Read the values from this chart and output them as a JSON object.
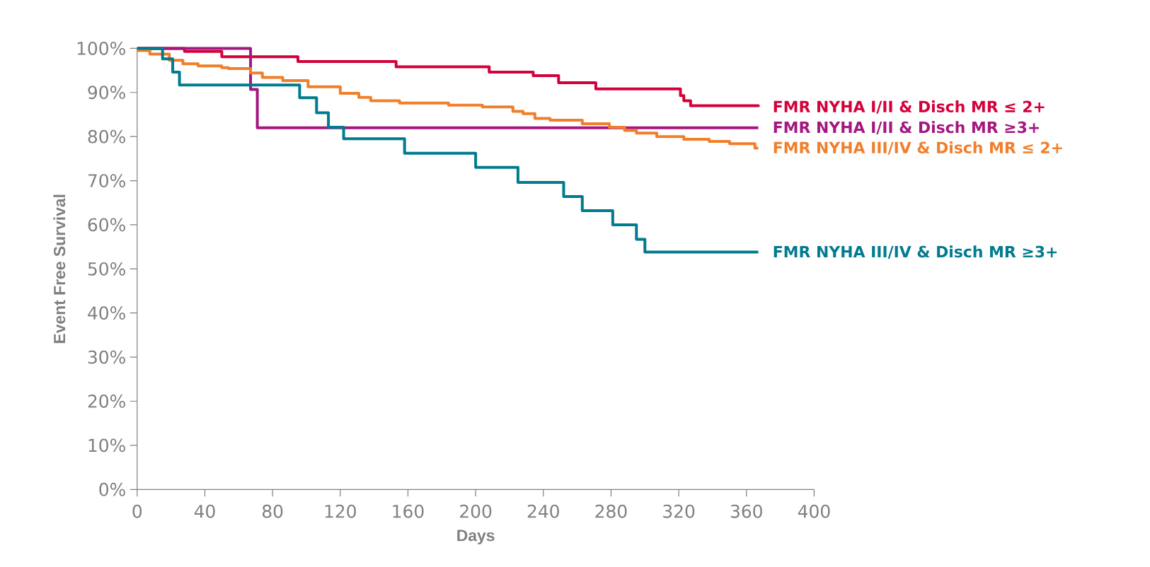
{
  "chart_data": {
    "type": "step",
    "xlabel": "Days",
    "ylabel": "Event Free Survival",
    "xlim": [
      0,
      400
    ],
    "ylim": [
      0,
      100
    ],
    "xticks": [
      0,
      40,
      80,
      120,
      160,
      200,
      240,
      280,
      320,
      360,
      400
    ],
    "yticks": [
      {
        "value": 0,
        "label": "0%"
      },
      {
        "value": 10,
        "label": "10%"
      },
      {
        "value": 20,
        "label": "20%"
      },
      {
        "value": 30,
        "label": "30%"
      },
      {
        "value": 40,
        "label": "40%"
      },
      {
        "value": 50,
        "label": "50%"
      },
      {
        "value": 60,
        "label": "60%"
      },
      {
        "value": 70,
        "label": "70%"
      },
      {
        "value": 80,
        "label": "80%"
      },
      {
        "value": 90,
        "label": "90%"
      },
      {
        "value": 100,
        "label": "100%"
      }
    ],
    "grid": false,
    "legend": false,
    "series": [
      {
        "name": "FMR NYHA I/II & Disch MR ≤ 2+",
        "color": "#d4003a",
        "x": [
          0,
          28,
          50,
          95,
          153,
          208,
          234,
          249,
          271,
          321,
          323,
          327,
          367
        ],
        "values": [
          100,
          99.3,
          98.1,
          97,
          95.8,
          94.6,
          93.8,
          92.2,
          90.8,
          89.3,
          88.1,
          87,
          86.7
        ]
      },
      {
        "name": "FMR NYHA I/II & Disch MR ≥3+",
        "color": "#a4177f",
        "x": [
          0,
          67,
          71,
          367
        ],
        "values": [
          100,
          90.7,
          82,
          82
        ]
      },
      {
        "name": "FMR NYHA III/IV & Disch MR ≤ 2+",
        "color": "#f07f2b",
        "x": [
          0,
          7.5,
          19,
          27,
          36,
          50,
          54,
          67,
          74,
          86,
          101,
          120,
          131,
          138,
          155,
          184,
          204,
          222,
          228,
          235,
          244,
          263,
          279,
          288,
          295,
          307,
          323,
          338,
          350,
          365,
          367
        ],
        "values": [
          99.5,
          98.7,
          97.3,
          96.5,
          96,
          95.6,
          95.4,
          94.4,
          93.4,
          92.7,
          91.3,
          89.8,
          88.9,
          88.1,
          87.6,
          87.1,
          86.7,
          85.7,
          85.2,
          84.1,
          83.7,
          82.9,
          82.1,
          81.4,
          80.8,
          80,
          79.4,
          78.9,
          78.4,
          77.4,
          77.4
        ]
      },
      {
        "name": "FMR NYHA III/IV & Disch MR ≥3+",
        "color": "#007b8f",
        "x": [
          0,
          15,
          21,
          25,
          96,
          106,
          113,
          122,
          158,
          200,
          225,
          252,
          263,
          281,
          295,
          300,
          367
        ],
        "values": [
          100,
          97.6,
          94.6,
          91.7,
          88.8,
          85.4,
          82.1,
          79.5,
          76.2,
          73,
          69.6,
          66.4,
          63.2,
          60,
          56.7,
          53.8,
          53.8
        ]
      }
    ]
  }
}
